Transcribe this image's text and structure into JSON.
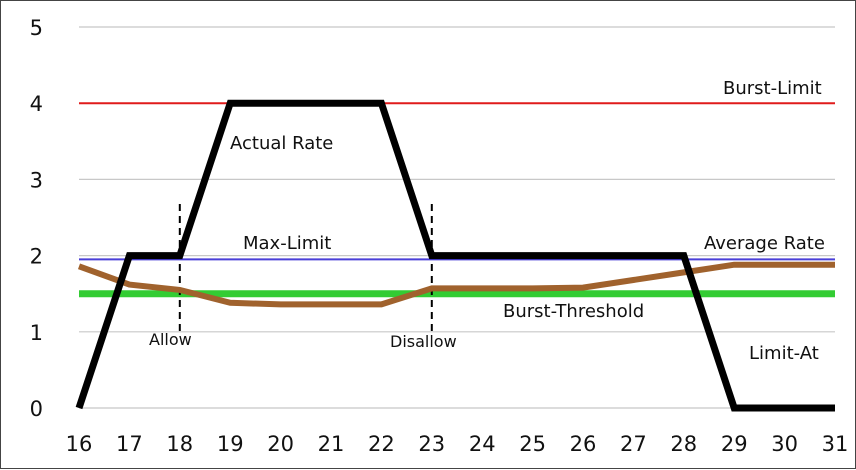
{
  "chart_data": {
    "type": "line",
    "title": "",
    "xlabel": "",
    "ylabel": "",
    "xlim": [
      16,
      31
    ],
    "ylim": [
      0,
      5
    ],
    "grid": true,
    "x_ticks": [
      "16",
      "17",
      "18",
      "19",
      "20",
      "21",
      "22",
      "23",
      "24",
      "25",
      "26",
      "27",
      "28",
      "29",
      "30",
      "31"
    ],
    "y_ticks": [
      "0",
      "1",
      "2",
      "3",
      "4",
      "5"
    ],
    "colors": {
      "actual": "#000000",
      "average": "#a0622d",
      "burst_limit": "#e01b1b",
      "max_limit": "#4a3fd8",
      "burst_threshold": "#33cc33",
      "grid": "#c8c8c8"
    },
    "series": [
      {
        "name": "Actual Rate",
        "points": [
          [
            16,
            0
          ],
          [
            17,
            2
          ],
          [
            18,
            2
          ],
          [
            19,
            4
          ],
          [
            22,
            4
          ],
          [
            23,
            2
          ],
          [
            28,
            2
          ],
          [
            29,
            0
          ],
          [
            31,
            0
          ]
        ]
      },
      {
        "name": "Average Rate",
        "points": [
          [
            16,
            1.86
          ],
          [
            17,
            1.62
          ],
          [
            18,
            1.55
          ],
          [
            19,
            1.38
          ],
          [
            20,
            1.36
          ],
          [
            21,
            1.36
          ],
          [
            22,
            1.36
          ],
          [
            23,
            1.57
          ],
          [
            24,
            1.57
          ],
          [
            25,
            1.57
          ],
          [
            26,
            1.58
          ],
          [
            27,
            1.68
          ],
          [
            28,
            1.78
          ],
          [
            29,
            1.88
          ],
          [
            30,
            1.88
          ],
          [
            31,
            1.88
          ]
        ]
      }
    ],
    "reference_lines": [
      {
        "name": "Burst-Limit",
        "y": 4
      },
      {
        "name": "Max-Limit",
        "y": 1.95
      },
      {
        "name": "Burst-Threshold",
        "y": 1.5
      }
    ],
    "markers": [
      {
        "name": "Allow",
        "x": 18
      },
      {
        "name": "Disallow",
        "x": 23
      }
    ],
    "annotations": {
      "burst_limit": "Burst-Limit",
      "actual_rate": "Actual Rate",
      "max_limit": "Max-Limit",
      "average_rate": "Average Rate",
      "burst_threshold": "Burst-Threshold",
      "allow": "Allow",
      "disallow": "Disallow",
      "limit_at": "Limit-At"
    }
  }
}
